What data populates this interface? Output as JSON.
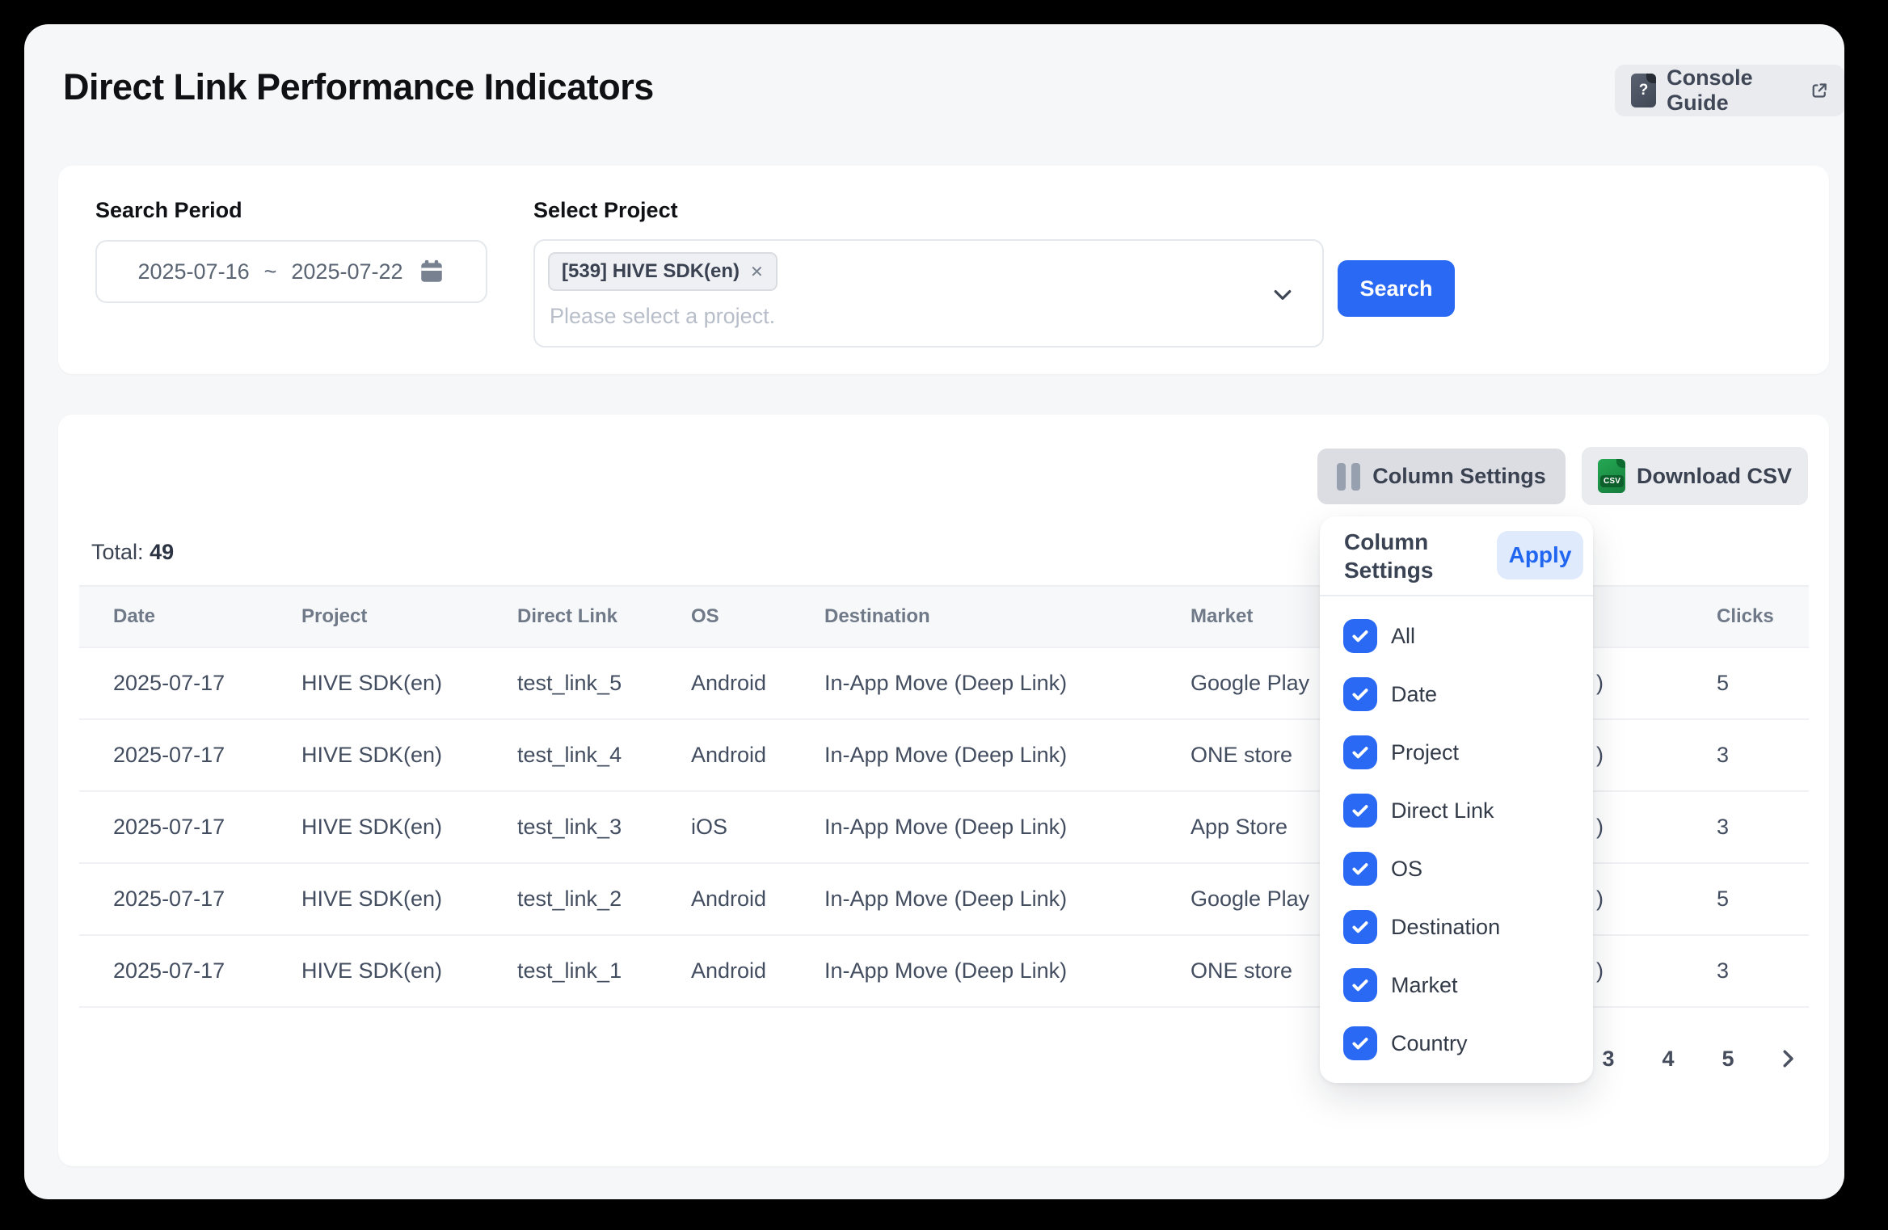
{
  "page": {
    "title": "Direct Link Performance Indicators"
  },
  "header": {
    "console_guide": {
      "label": "Console Guide",
      "doc_glyph": "?"
    }
  },
  "filters": {
    "search_period": {
      "label": "Search Period",
      "start": "2025-07-16",
      "separator": "~",
      "end": "2025-07-22"
    },
    "select_project": {
      "label": "Select Project",
      "tag": {
        "text": "[539] HIVE SDK(en)",
        "remove_glyph": "✕"
      },
      "placeholder": "Please select a project."
    },
    "search_button": "Search"
  },
  "toolbar": {
    "column_settings_label": "Column Settings",
    "download_csv_label": "Download CSV",
    "csv_badge": "CSV"
  },
  "table": {
    "total_label": "Total:",
    "total_value": "49",
    "column_keys": [
      "date",
      "project",
      "direct-link",
      "os",
      "destination",
      "market",
      "country",
      "clicks"
    ],
    "headers": [
      "Date",
      "Project",
      "Direct Link",
      "OS",
      "Destination",
      "Market",
      "",
      "Clicks"
    ],
    "rows": [
      [
        "2025-07-17",
        "HIVE SDK(en)",
        "test_link_5",
        "Android",
        "In-App Move (Deep Link)",
        "Google Play",
        ")",
        "5"
      ],
      [
        "2025-07-17",
        "HIVE SDK(en)",
        "test_link_4",
        "Android",
        "In-App Move (Deep Link)",
        "ONE store",
        ")",
        "3"
      ],
      [
        "2025-07-17",
        "HIVE SDK(en)",
        "test_link_3",
        "iOS",
        "In-App Move (Deep Link)",
        "App Store",
        ")",
        "3"
      ],
      [
        "2025-07-17",
        "HIVE SDK(en)",
        "test_link_2",
        "Android",
        "In-App Move (Deep Link)",
        "Google Play",
        ")",
        "5"
      ],
      [
        "2025-07-17",
        "HIVE SDK(en)",
        "test_link_1",
        "Android",
        "In-App Move (Deep Link)",
        "ONE store",
        ")",
        "3"
      ]
    ]
  },
  "column_settings_panel": {
    "title_line1": "Column",
    "title_line2": "Settings",
    "apply_label": "Apply",
    "options": [
      {
        "label": "All",
        "checked": true
      },
      {
        "label": "Date",
        "checked": true
      },
      {
        "label": "Project",
        "checked": true
      },
      {
        "label": "Direct Link",
        "checked": true
      },
      {
        "label": "OS",
        "checked": true
      },
      {
        "label": "Destination",
        "checked": true
      },
      {
        "label": "Market",
        "checked": true
      },
      {
        "label": "Country",
        "checked": true
      }
    ]
  },
  "pagination": {
    "pages": [
      "3",
      "4",
      "5"
    ]
  },
  "colors": {
    "accent_blue": "#2969f3",
    "apply_bg": "#dfeafd",
    "apply_text": "#2166f0",
    "csv_green": "#1d9e4a",
    "page_bg": "#f6f7f8",
    "outer_bg": "#000000"
  }
}
